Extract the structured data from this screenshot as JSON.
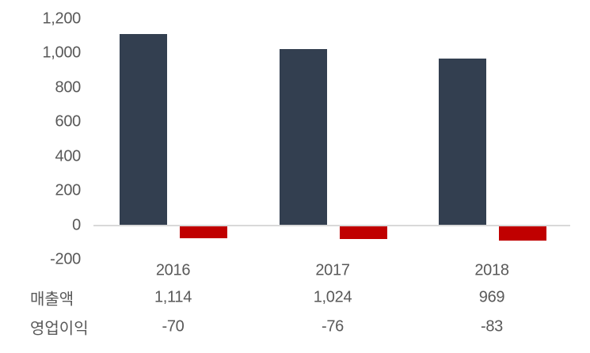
{
  "colors": {
    "revenue_bar": "#333F50",
    "operating_profit_bar": "#C00000",
    "axis_line": "#D9D9D9",
    "text": "#595959",
    "background": "#FFFFFF"
  },
  "chart_data": {
    "type": "bar",
    "title": "",
    "categories": [
      "2016",
      "2017",
      "2018"
    ],
    "series": [
      {
        "key": "revenue",
        "name": "매출액",
        "values": [
          1114,
          1024,
          969
        ],
        "value_labels": [
          "1,114",
          "1,024",
          "969"
        ],
        "color": "#333F50"
      },
      {
        "key": "operating-profit",
        "name": "영업이익",
        "values": [
          -70,
          -76,
          -83
        ],
        "value_labels": [
          "-70",
          "-76",
          "-83"
        ],
        "color": "#C00000"
      }
    ],
    "y_axis": {
      "min": -200,
      "max": 1200,
      "tick_interval": 200,
      "tick_values": [
        1200,
        1000,
        800,
        600,
        400,
        200,
        0,
        -200
      ],
      "tick_labels": [
        "1,200",
        "1,000",
        "800",
        "600",
        "400",
        "200",
        "0",
        "-200"
      ]
    },
    "grid": false,
    "legend_position": "none",
    "data_table_shown": true
  }
}
